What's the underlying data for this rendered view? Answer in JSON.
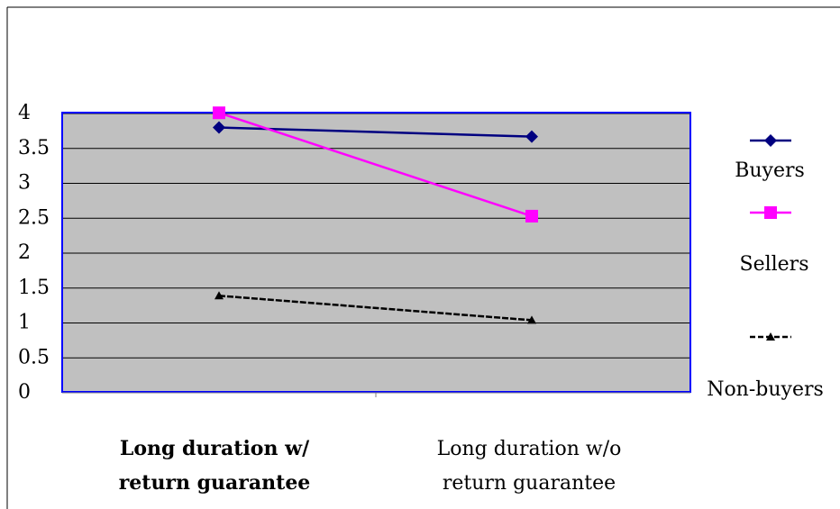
{
  "chart_data": {
    "type": "line",
    "title": "",
    "xlabel": "",
    "ylabel": "",
    "categories": [
      [
        "Long duration w/",
        "return guarantee"
      ],
      [
        "Long duration w/o",
        "return guarantee"
      ]
    ],
    "series": [
      {
        "name": "Buyers",
        "values": [
          3.8,
          3.67
        ],
        "color": "#000080",
        "marker": "diamond",
        "dash": "solid"
      },
      {
        "name": "Sellers",
        "values": [
          4.01,
          2.53
        ],
        "color": "#ff00ff",
        "marker": "square",
        "dash": "solid"
      },
      {
        "name": "Non-buyers",
        "values": [
          1.39,
          1.04
        ],
        "color": "#000000",
        "marker": "triangle",
        "dash": "dashed"
      }
    ],
    "yticks": [
      "0",
      "0.5",
      "1",
      "1.5",
      "2",
      "2.5",
      "3",
      "3.5",
      "4"
    ],
    "ylim": [
      0,
      4
    ],
    "grid": true,
    "legend": "right",
    "colors": {
      "plot_background": "#c0c0c0",
      "plot_border": "#0000ff",
      "gridline": "#000000"
    }
  }
}
